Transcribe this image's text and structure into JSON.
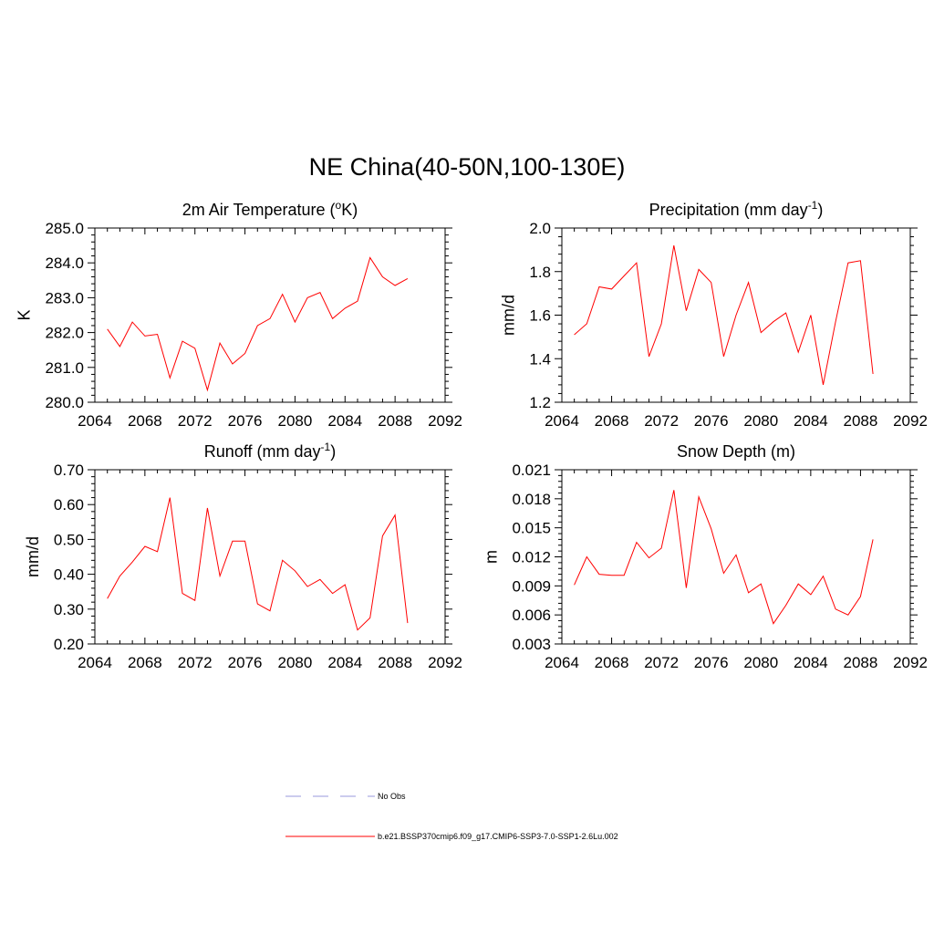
{
  "title": "NE China(40-50N,100-130E)",
  "colors": {
    "series": "#ff0000",
    "obs": "#9999dd",
    "axis": "#000000"
  },
  "chart_data": [
    {
      "type": "line",
      "title": "2m Air Temperature (",
      "title_sup": "o",
      "title_suffix": "K)",
      "ylabel": "K",
      "xlim": [
        2064,
        2092
      ],
      "ylim": [
        280.0,
        285.0
      ],
      "xticks": [
        "2064",
        "2068",
        "2072",
        "2076",
        "2080",
        "2084",
        "2088",
        "2092"
      ],
      "yticks": [
        "280.0",
        "281.0",
        "282.0",
        "283.0",
        "284.0",
        "285.0"
      ],
      "x": [
        2065,
        2066,
        2067,
        2068,
        2069,
        2070,
        2071,
        2072,
        2073,
        2074,
        2075,
        2076,
        2077,
        2078,
        2079,
        2080,
        2081,
        2082,
        2083,
        2084,
        2085,
        2086,
        2087,
        2088,
        2089
      ],
      "series": [
        {
          "values": [
            282.1,
            281.6,
            282.3,
            281.9,
            281.95,
            280.7,
            281.75,
            281.55,
            280.35,
            281.7,
            281.1,
            281.4,
            282.2,
            282.4,
            283.1,
            282.3,
            283.0,
            283.15,
            282.4,
            282.7,
            282.9,
            284.15,
            283.6,
            283.35,
            283.55
          ]
        }
      ]
    },
    {
      "type": "line",
      "title": "Precipitation (mm day",
      "title_sup": "-1",
      "title_suffix": ")",
      "ylabel": "mm/d",
      "xlim": [
        2064,
        2092
      ],
      "ylim": [
        1.2,
        2.0
      ],
      "xticks": [
        "2064",
        "2068",
        "2072",
        "2076",
        "2080",
        "2084",
        "2088",
        "2092"
      ],
      "yticks": [
        "1.2",
        "1.4",
        "1.6",
        "1.8",
        "2.0"
      ],
      "x": [
        2065,
        2066,
        2067,
        2068,
        2069,
        2070,
        2071,
        2072,
        2073,
        2074,
        2075,
        2076,
        2077,
        2078,
        2079,
        2080,
        2081,
        2082,
        2083,
        2084,
        2085,
        2086,
        2087,
        2088,
        2089
      ],
      "series": [
        {
          "values": [
            1.51,
            1.56,
            1.73,
            1.72,
            1.78,
            1.84,
            1.41,
            1.56,
            1.92,
            1.62,
            1.81,
            1.75,
            1.41,
            1.6,
            1.75,
            1.52,
            1.57,
            1.61,
            1.43,
            1.6,
            1.28,
            1.57,
            1.84,
            1.85,
            1.33
          ]
        }
      ]
    },
    {
      "type": "line",
      "title": "Runoff (mm day",
      "title_sup": "-1",
      "title_suffix": ")",
      "ylabel": "mm/d",
      "xlim": [
        2064,
        2092
      ],
      "ylim": [
        0.2,
        0.7
      ],
      "xticks": [
        "2064",
        "2068",
        "2072",
        "2076",
        "2080",
        "2084",
        "2088",
        "2092"
      ],
      "yticks": [
        "0.20",
        "0.30",
        "0.40",
        "0.50",
        "0.60",
        "0.70"
      ],
      "x": [
        2065,
        2066,
        2067,
        2068,
        2069,
        2070,
        2071,
        2072,
        2073,
        2074,
        2075,
        2076,
        2077,
        2078,
        2079,
        2080,
        2081,
        2082,
        2083,
        2084,
        2085,
        2086,
        2087,
        2088,
        2089
      ],
      "series": [
        {
          "values": [
            0.33,
            0.395,
            0.435,
            0.48,
            0.465,
            0.62,
            0.345,
            0.325,
            0.59,
            0.395,
            0.495,
            0.495,
            0.315,
            0.295,
            0.44,
            0.41,
            0.365,
            0.385,
            0.345,
            0.37,
            0.24,
            0.275,
            0.51,
            0.57,
            0.26
          ]
        }
      ]
    },
    {
      "type": "line",
      "title": "Snow Depth (m)",
      "title_sup": "",
      "title_suffix": "",
      "ylabel": "m",
      "xlim": [
        2064,
        2092
      ],
      "ylim": [
        0.003,
        0.021
      ],
      "xticks": [
        "2064",
        "2068",
        "2072",
        "2076",
        "2080",
        "2084",
        "2088",
        "2092"
      ],
      "yticks": [
        "0.003",
        "0.006",
        "0.009",
        "0.012",
        "0.015",
        "0.018",
        "0.021"
      ],
      "x": [
        2065,
        2066,
        2067,
        2068,
        2069,
        2070,
        2071,
        2072,
        2073,
        2074,
        2075,
        2076,
        2077,
        2078,
        2079,
        2080,
        2081,
        2082,
        2083,
        2084,
        2085,
        2086,
        2087,
        2088,
        2089
      ],
      "series": [
        {
          "values": [
            0.0091,
            0.012,
            0.0102,
            0.0101,
            0.0101,
            0.0135,
            0.0119,
            0.0129,
            0.0189,
            0.0088,
            0.0182,
            0.0149,
            0.0103,
            0.0122,
            0.0083,
            0.0092,
            0.0051,
            0.007,
            0.0092,
            0.0081,
            0.01,
            0.0066,
            0.006,
            0.0079,
            0.0138
          ]
        }
      ]
    }
  ],
  "legend": [
    {
      "label": "No Obs",
      "style": "dashed",
      "color": "#9999dd"
    },
    {
      "label": "b.e21.BSSP370cmip6.f09_g17.CMIP6-SSP3-7.0-SSP1-2.6Lu.002",
      "style": "solid",
      "color": "#ff0000"
    }
  ]
}
